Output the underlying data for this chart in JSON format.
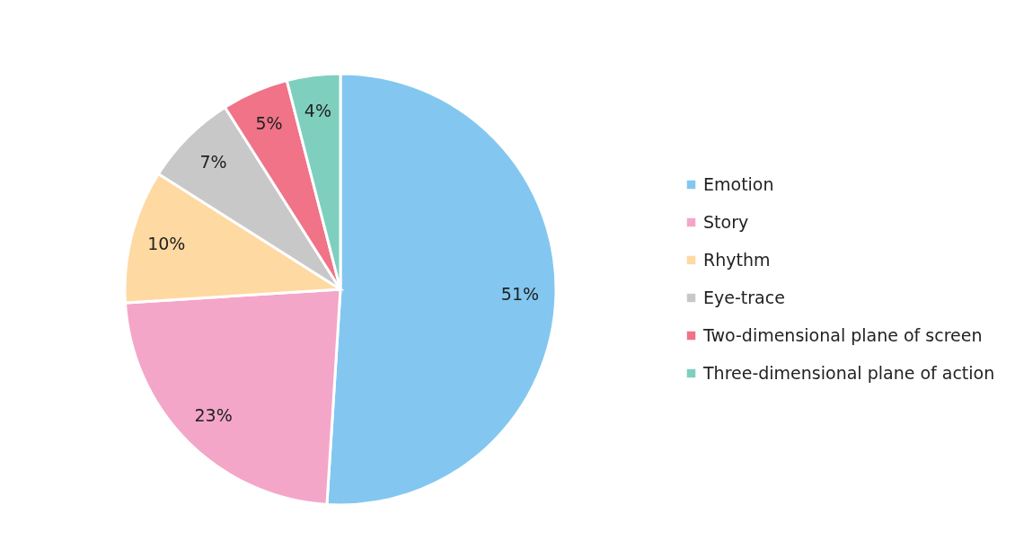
{
  "chart_data": {
    "type": "pie",
    "categories": [
      "Emotion",
      "Story",
      "Rhythm",
      "Eye-trace",
      "Two-dimensional plane of screen",
      "Three-dimensional plane of action"
    ],
    "values": [
      51,
      23,
      10,
      7,
      5,
      4
    ],
    "colors": [
      "#83c7f0",
      "#f4a6c8",
      "#fed9a2",
      "#c8c8c8",
      "#f07388",
      "#7fcfbf"
    ],
    "value_labels": [
      "51%",
      "23%",
      "10%",
      "7%",
      "5%",
      "4%"
    ],
    "legend": "right"
  }
}
